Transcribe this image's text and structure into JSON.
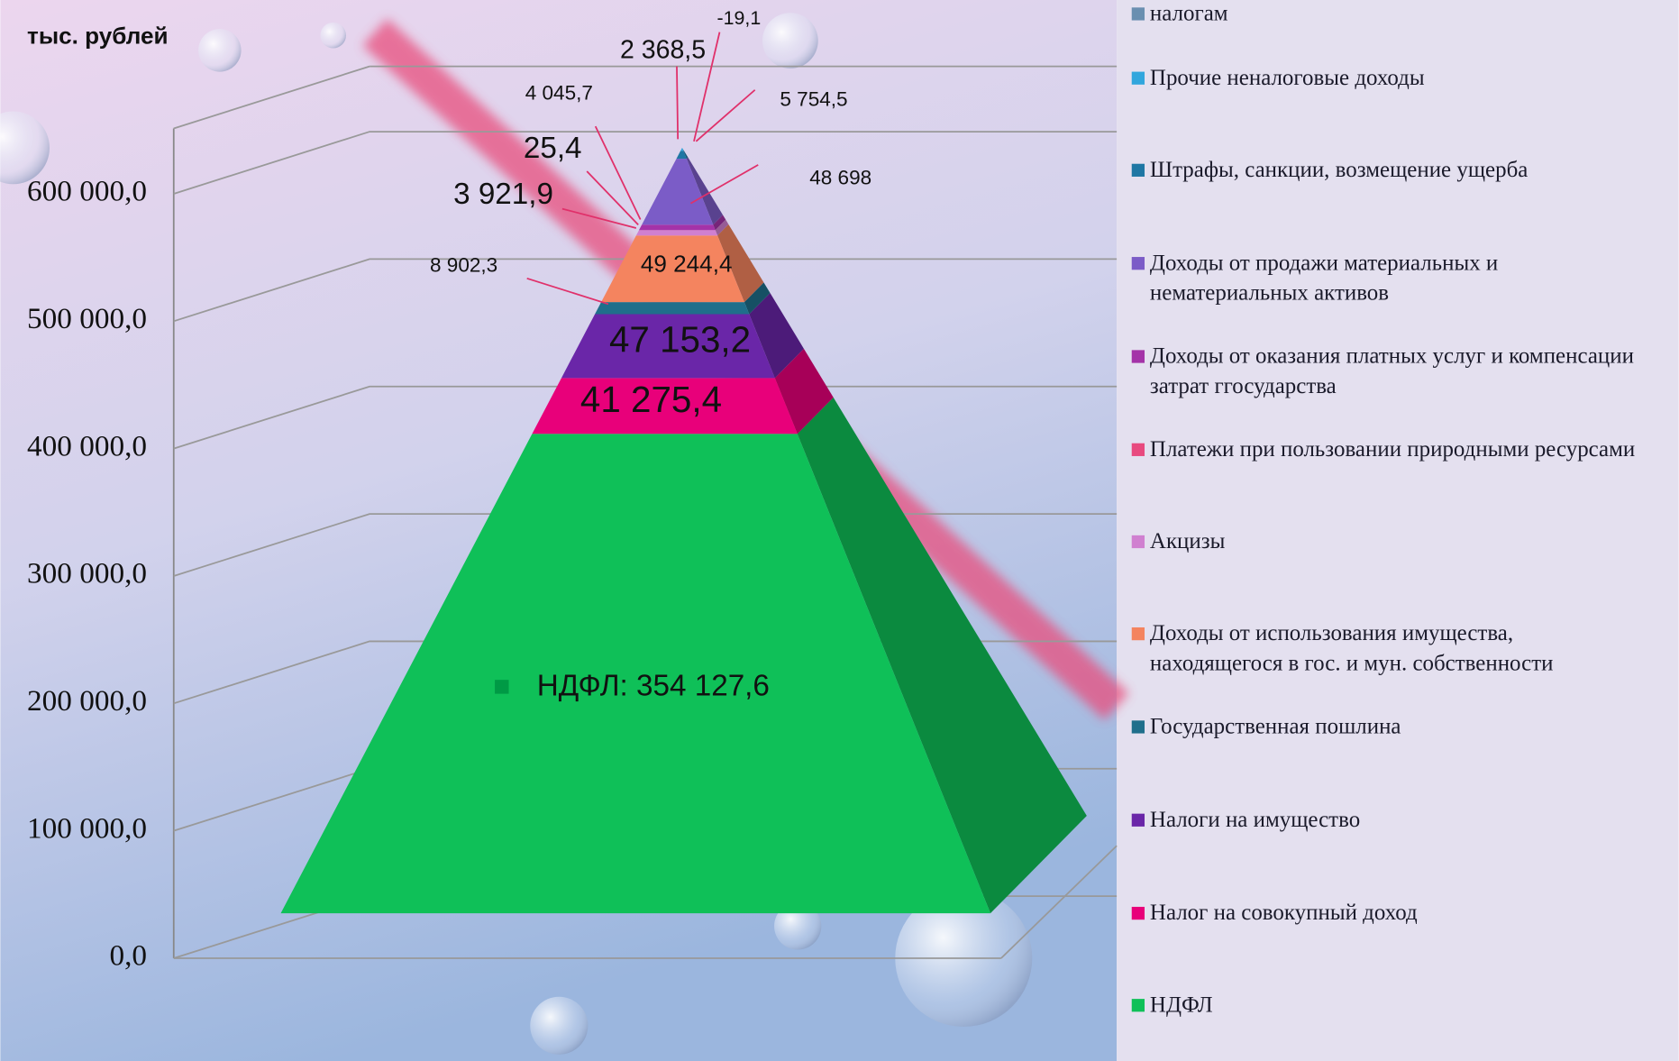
{
  "chart_data": {
    "type": "pyramid",
    "y_label": "тыс. рублей",
    "categories": [
      "налогам",
      "Прочие неналоговые доходы",
      "Штрафы, санкции, возмещение ущерба",
      "Доходы от продажи материальных и нематериальных активов",
      "Доходы от оказания платных услуг и компенсации затрат ггосударства",
      "Платежи при пользовании природными ресурсами",
      "Акцизы",
      "Доходы от использования имущества, находящегося в гос. и мун. собственности",
      "Государственная пошлина",
      "Налоги на имущество",
      "Налог на совокупный доход",
      "НДФЛ"
    ],
    "values": [
      -19.1,
      2368.5,
      5754.5,
      48698,
      4045.7,
      25.4,
      3921.9,
      49244.4,
      8902.3,
      47153.2,
      41275.4,
      354127.6
    ],
    "value_labels": [
      "-19,1",
      "2 368,5",
      "5 754,5",
      "48 698",
      "4 045,7",
      "25,4",
      "3 921,9",
      "49 244,4",
      "8 902,3",
      "47 153,2",
      "41 275,4",
      "НДФЛ: 354 127,6"
    ],
    "colors": [
      "#6a8fb0",
      "#31a6dd",
      "#1f77a4",
      "#7b5cc7",
      "#a433a8",
      "#e84a7f",
      "#d080d0",
      "#f4845f",
      "#1f6f8b",
      "#6a26a8",
      "#e8007a",
      "#0fc058"
    ],
    "ylim": [
      0,
      700000
    ],
    "yticks": [
      {
        "value": 0,
        "label": "0,0"
      },
      {
        "value": 100000,
        "label": "100 000,0"
      },
      {
        "value": 200000,
        "label": "200 000,0"
      },
      {
        "value": 300000,
        "label": "300 000,0"
      },
      {
        "value": 400000,
        "label": "400 000,0"
      },
      {
        "value": 500000,
        "label": "500 000,0"
      },
      {
        "value": 600000,
        "label": "600 000,0"
      }
    ],
    "grid": true,
    "legend": "right"
  }
}
